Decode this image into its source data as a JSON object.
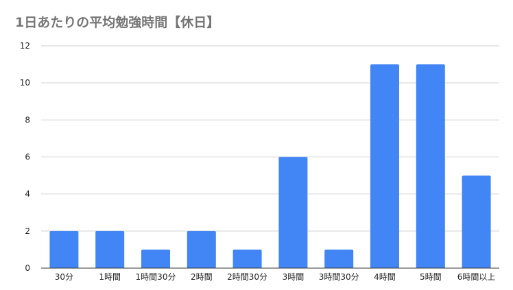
{
  "chart_data": {
    "type": "bar",
    "title": "1日あたりの平均勉強時間【休日】",
    "xlabel": "",
    "ylabel": "",
    "categories": [
      "30分",
      "1時間",
      "1時間30分",
      "2時間",
      "2時間30分",
      "3時間",
      "3時間30分",
      "4時間",
      "5時間",
      "6時間以上"
    ],
    "values": [
      2,
      2,
      1,
      2,
      1,
      6,
      1,
      11,
      11,
      5
    ],
    "ylim": [
      0,
      12
    ],
    "yticks": [
      "0",
      "2",
      "4",
      "6",
      "8",
      "10",
      "12"
    ],
    "grid": true,
    "legend": "none",
    "bar_color": "#4285f4",
    "grid_color": "#cccccc",
    "axis_color": "#333333"
  }
}
